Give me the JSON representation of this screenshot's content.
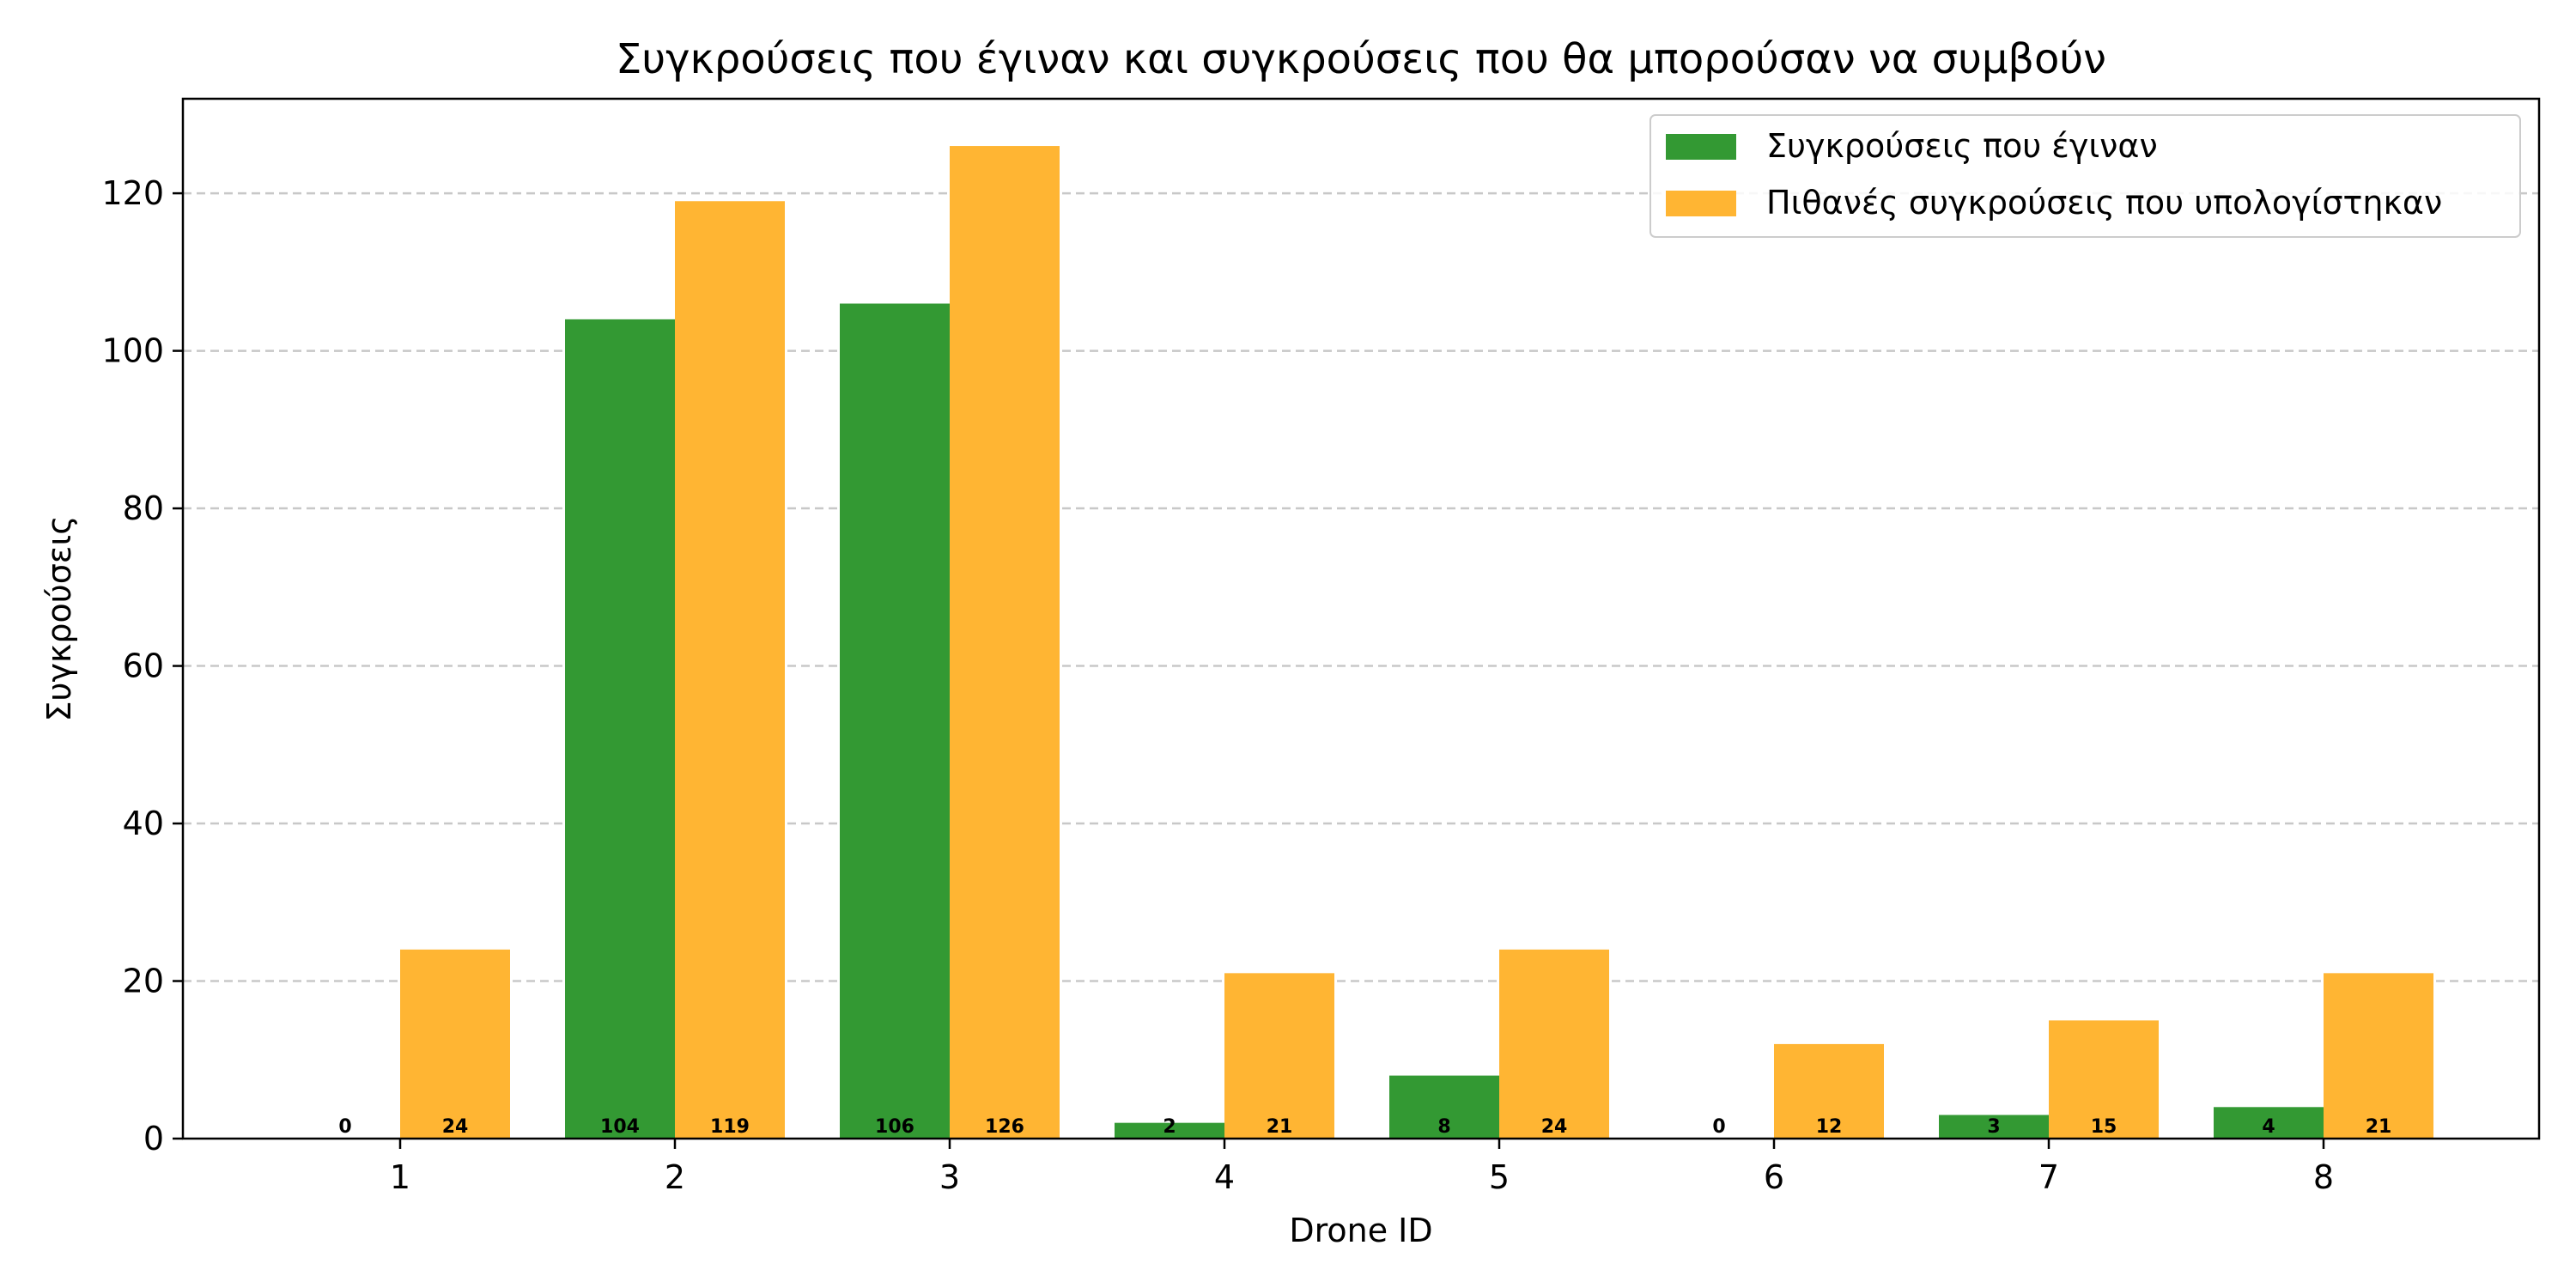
{
  "chart_data": {
    "type": "bar",
    "title": "Συγκρούσεις που έγιναν και συγκρούσεις που θα μπορούσαν να συμβούν",
    "xlabel": "Drone ID",
    "ylabel": "Συγκρούσεις",
    "categories": [
      "1",
      "2",
      "3",
      "4",
      "5",
      "6",
      "7",
      "8"
    ],
    "ylim": [
      0,
      132
    ],
    "yticks": [
      0,
      20,
      40,
      60,
      80,
      100,
      120
    ],
    "grid": "y-dashed",
    "legend_position": "top-right",
    "series": [
      {
        "name": "Συγκρούσεις που έγιναν",
        "color": "#339933",
        "values": [
          0,
          104,
          106,
          2,
          8,
          0,
          3,
          4
        ]
      },
      {
        "name": "Πιθανές συγκρούσεις που υπολογίστηκαν",
        "color": "#ffb533",
        "values": [
          24,
          119,
          126,
          21,
          24,
          12,
          15,
          21
        ]
      }
    ]
  }
}
